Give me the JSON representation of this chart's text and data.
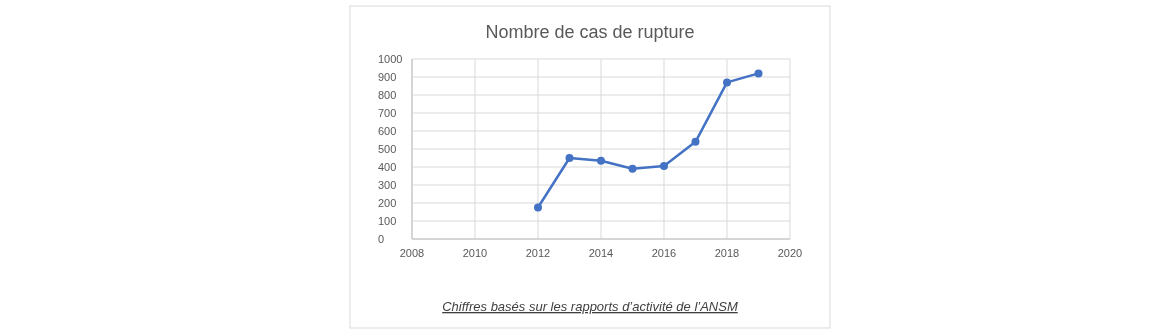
{
  "chart_data": {
    "type": "line",
    "title": "Nombre de cas de rupture",
    "x": [
      2012,
      2013,
      2014,
      2015,
      2016,
      2017,
      2018,
      2019
    ],
    "series": [
      {
        "color": "#4472c4",
        "values": [
          175,
          450,
          435,
          390,
          405,
          540,
          870,
          920
        ]
      }
    ],
    "xlim": [
      2008,
      2020
    ],
    "xticks": [
      2008,
      2010,
      2012,
      2014,
      2016,
      2018,
      2020
    ],
    "ylim": [
      0,
      1000
    ],
    "yticks": [
      0,
      100,
      200,
      300,
      400,
      500,
      600,
      700,
      800,
      900,
      1000
    ],
    "grid": true,
    "marker": "circle",
    "annotations": [
      "Chiffres basés sur les rapports d’activité de l’ANSM"
    ]
  }
}
